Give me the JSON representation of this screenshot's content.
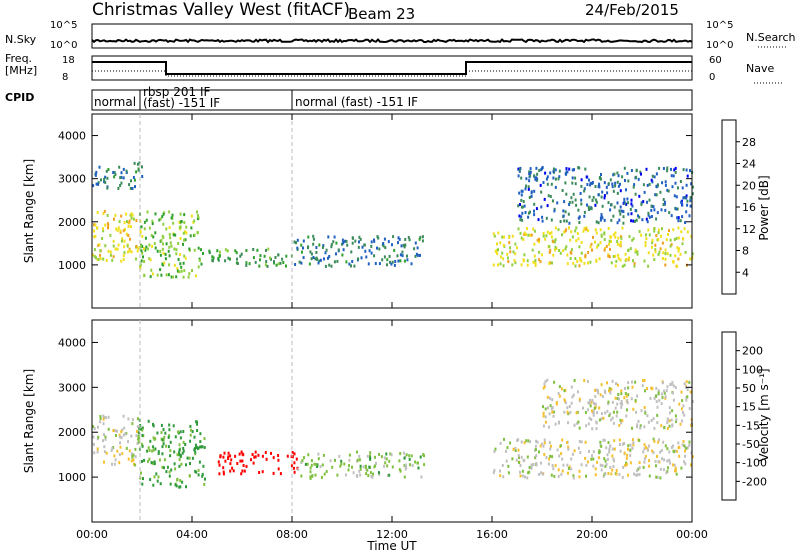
{
  "header": {
    "station": "Christmas Valley West (fitACF)",
    "beam": "Beam 23",
    "date": "24/Feb/2015"
  },
  "panels": {
    "nsky_label": "N.Sky",
    "nsearch_label": "N.Search",
    "nsky_ticks": [
      "10^5",
      "10^0"
    ],
    "nsearch_ticks": [
      "10^5",
      "10^0"
    ],
    "freq_label_1": "Freq.",
    "freq_label_2": "[MHz]",
    "freq_ticks": [
      "18",
      "8"
    ],
    "nave_label": "Nave",
    "nave_ticks": [
      "60",
      "0"
    ],
    "cpid_label": "CPID",
    "cpid_modes": [
      "normal",
      "rbsp 201 IF",
      "(fast) -151 IF",
      "normal (fast) -151 IF"
    ]
  },
  "colors": {
    "power": [
      "#0000f0",
      "#2060c0",
      "#3a8a5a",
      "#2ea02e",
      "#90d040",
      "#f0e020",
      "#f0a020",
      "#f06010",
      "#e01010"
    ],
    "velocity": [
      "#ff0000",
      "#ff5a00",
      "#ff9800",
      "#f5c030",
      "#c0c0c0",
      "#80c040",
      "#2e9a3a",
      "#2050a0",
      "#0018d0"
    ]
  },
  "chart_data": [
    {
      "type": "heatmap",
      "quantity": "Power",
      "ylabel": "Slant Range [km]",
      "yticks": [
        1000,
        2000,
        3000,
        4000
      ],
      "ylim": [
        0,
        4500
      ],
      "xlim_hours": [
        0,
        24
      ],
      "colorbar_label": "Power [dB]",
      "colorbar_ticks": [
        "4",
        "8",
        "12",
        "16",
        "20",
        "24",
        "28"
      ],
      "colorbar_range": [
        0,
        30
      ],
      "echo_bands": [
        {
          "t0": 0.0,
          "t1": 1.8,
          "r0": 1100,
          "r1": 2350,
          "power_db": 18
        },
        {
          "t0": 0.0,
          "t1": 2.0,
          "r0": 2800,
          "r1": 3400,
          "power_db": 6
        },
        {
          "t0": 1.8,
          "t1": 4.3,
          "r0": 750,
          "r1": 2300,
          "power_db": 14
        },
        {
          "t0": 4.3,
          "t1": 8.0,
          "r0": 1000,
          "r1": 1400,
          "power_db": 10
        },
        {
          "t0": 8.0,
          "t1": 13.3,
          "r0": 1000,
          "r1": 1700,
          "power_db": 6
        },
        {
          "t0": 16.0,
          "t1": 24.0,
          "r0": 1000,
          "r1": 1900,
          "power_db": 18
        },
        {
          "t0": 17.0,
          "t1": 24.0,
          "r0": 2000,
          "r1": 3300,
          "power_db": 5
        }
      ]
    },
    {
      "type": "heatmap",
      "quantity": "Velocity",
      "ylabel": "Slant Range [km]",
      "yticks": [
        1000,
        2000,
        3000,
        4000
      ],
      "ylim": [
        0,
        4500
      ],
      "xlim_hours": [
        0,
        24
      ],
      "xticks": [
        "00:00",
        "04:00",
        "08:00",
        "12:00",
        "16:00",
        "20:00",
        "00:00"
      ],
      "xlabel": "Time UT",
      "colorbar_label": "Velocity [m s⁻¹]",
      "colorbar_ticks": [
        "-200",
        "-100",
        "-50",
        "-15",
        "15",
        "50",
        "100",
        "200"
      ],
      "echo_bands": [
        {
          "t0": 0.0,
          "t1": 1.8,
          "r0": 1300,
          "r1": 2400,
          "velocity": 0
        },
        {
          "t0": 1.8,
          "t1": 4.5,
          "r0": 800,
          "r1": 2300,
          "velocity": 60
        },
        {
          "t0": 5.0,
          "t1": 8.2,
          "r0": 1100,
          "r1": 1600,
          "velocity": -250
        },
        {
          "t0": 8.2,
          "t1": 13.3,
          "r0": 1000,
          "r1": 1600,
          "velocity": 30
        },
        {
          "t0": 16.0,
          "t1": 24.0,
          "r0": 1000,
          "r1": 1900,
          "velocity": 0
        },
        {
          "t0": 18.0,
          "t1": 24.0,
          "r0": 2100,
          "r1": 3200,
          "velocity": 0
        }
      ]
    }
  ]
}
